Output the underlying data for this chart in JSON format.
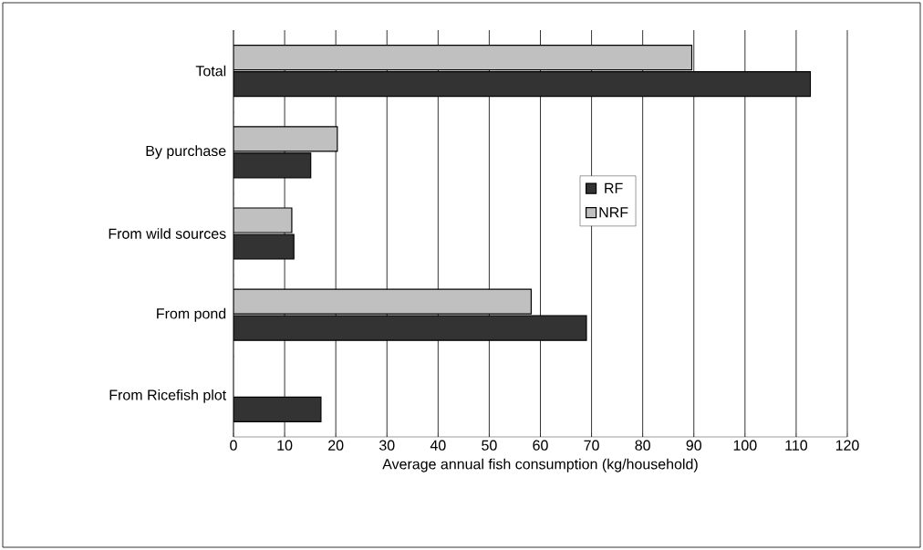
{
  "chart_data": {
    "type": "bar",
    "orientation": "horizontal",
    "xlabel": "Average annual fish consumption (kg/household)",
    "categories": [
      "Total",
      "By purchase",
      "From wild sources",
      "From pond",
      "From Ricefish plot"
    ],
    "series": [
      {
        "name": "RF",
        "color": "#333333",
        "values": [
          112.8,
          15.1,
          11.8,
          69.0,
          17.1
        ]
      },
      {
        "name": "NRF",
        "color": "#c0c0c0",
        "values": [
          89.6,
          20.3,
          11.4,
          58.2,
          null
        ]
      }
    ],
    "xlim": [
      0,
      120
    ],
    "xticks": [
      0,
      10,
      20,
      30,
      40,
      50,
      60,
      70,
      80,
      90,
      100,
      110,
      120
    ],
    "grid": "x",
    "legend": "right"
  }
}
